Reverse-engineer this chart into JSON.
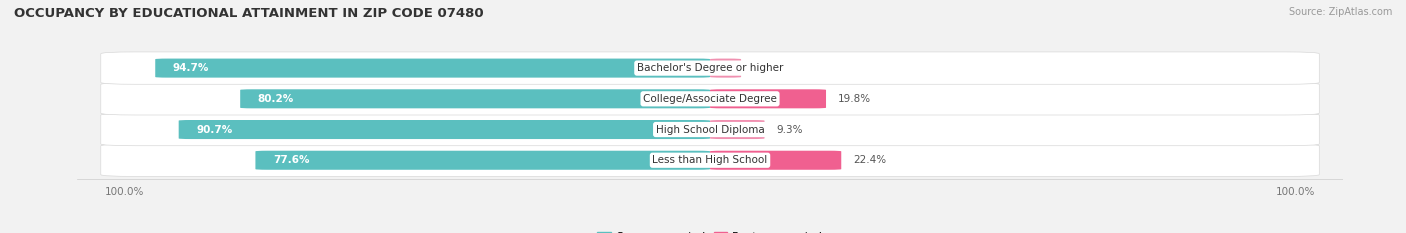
{
  "title": "OCCUPANCY BY EDUCATIONAL ATTAINMENT IN ZIP CODE 07480",
  "source": "Source: ZipAtlas.com",
  "categories": [
    "Less than High School",
    "High School Diploma",
    "College/Associate Degree",
    "Bachelor's Degree or higher"
  ],
  "owner_pct": [
    77.6,
    90.7,
    80.2,
    94.7
  ],
  "renter_pct": [
    22.4,
    9.3,
    19.8,
    5.3
  ],
  "owner_color": "#5BBFBF",
  "renter_color_dark": "#F06090",
  "renter_color_light": "#F090B0",
  "bg_color": "#f2f2f2",
  "row_bg_color_odd": "#e8e8e8",
  "row_bg_color_even": "#efefef",
  "title_fontsize": 9.5,
  "label_fontsize": 7.5,
  "tick_fontsize": 7.5,
  "legend_fontsize": 8,
  "source_fontsize": 7,
  "axis_label_left": "100.0%",
  "axis_label_right": "100.0%",
  "bar_height": 0.62,
  "xlim_left": -1.08,
  "xlim_right": 1.08
}
